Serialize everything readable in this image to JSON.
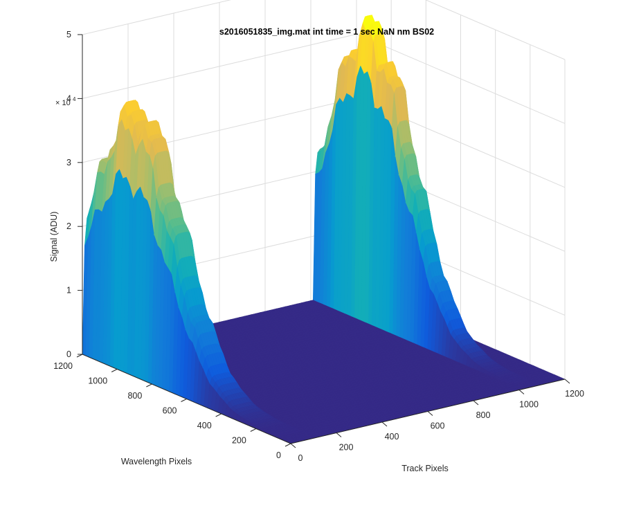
{
  "chart_data": {
    "type": "surface",
    "title": "s2016051835_img.mat int time = 1 sec  NaN nm BS02",
    "xlabel": "Track Pixels",
    "ylabel": "Wavelength Pixels",
    "zlabel": "Signal (ADU)",
    "z_exponent_label": "× 10",
    "z_exponent_value": "4",
    "xlim": [
      0,
      1200
    ],
    "ylim": [
      0,
      1200
    ],
    "zlim": [
      0,
      50000
    ],
    "x_ticks": [
      "0",
      "200",
      "400",
      "600",
      "800",
      "1000",
      "1200"
    ],
    "y_ticks": [
      "0",
      "200",
      "400",
      "600",
      "800",
      "1000",
      "1200"
    ],
    "z_ticks": [
      "0",
      "1",
      "2",
      "3",
      "4",
      "5"
    ],
    "grid": true,
    "colormap": "parula",
    "profiles": [
      {
        "region": "left-track",
        "track_start": 0,
        "track_end": 120,
        "peak_signal": 40000,
        "peak_wavelength": 950
      },
      {
        "region": "right-track",
        "track_start": 1010,
        "track_end": 1100,
        "peak_signal": 45000,
        "peak_wavelength": 920
      }
    ]
  }
}
